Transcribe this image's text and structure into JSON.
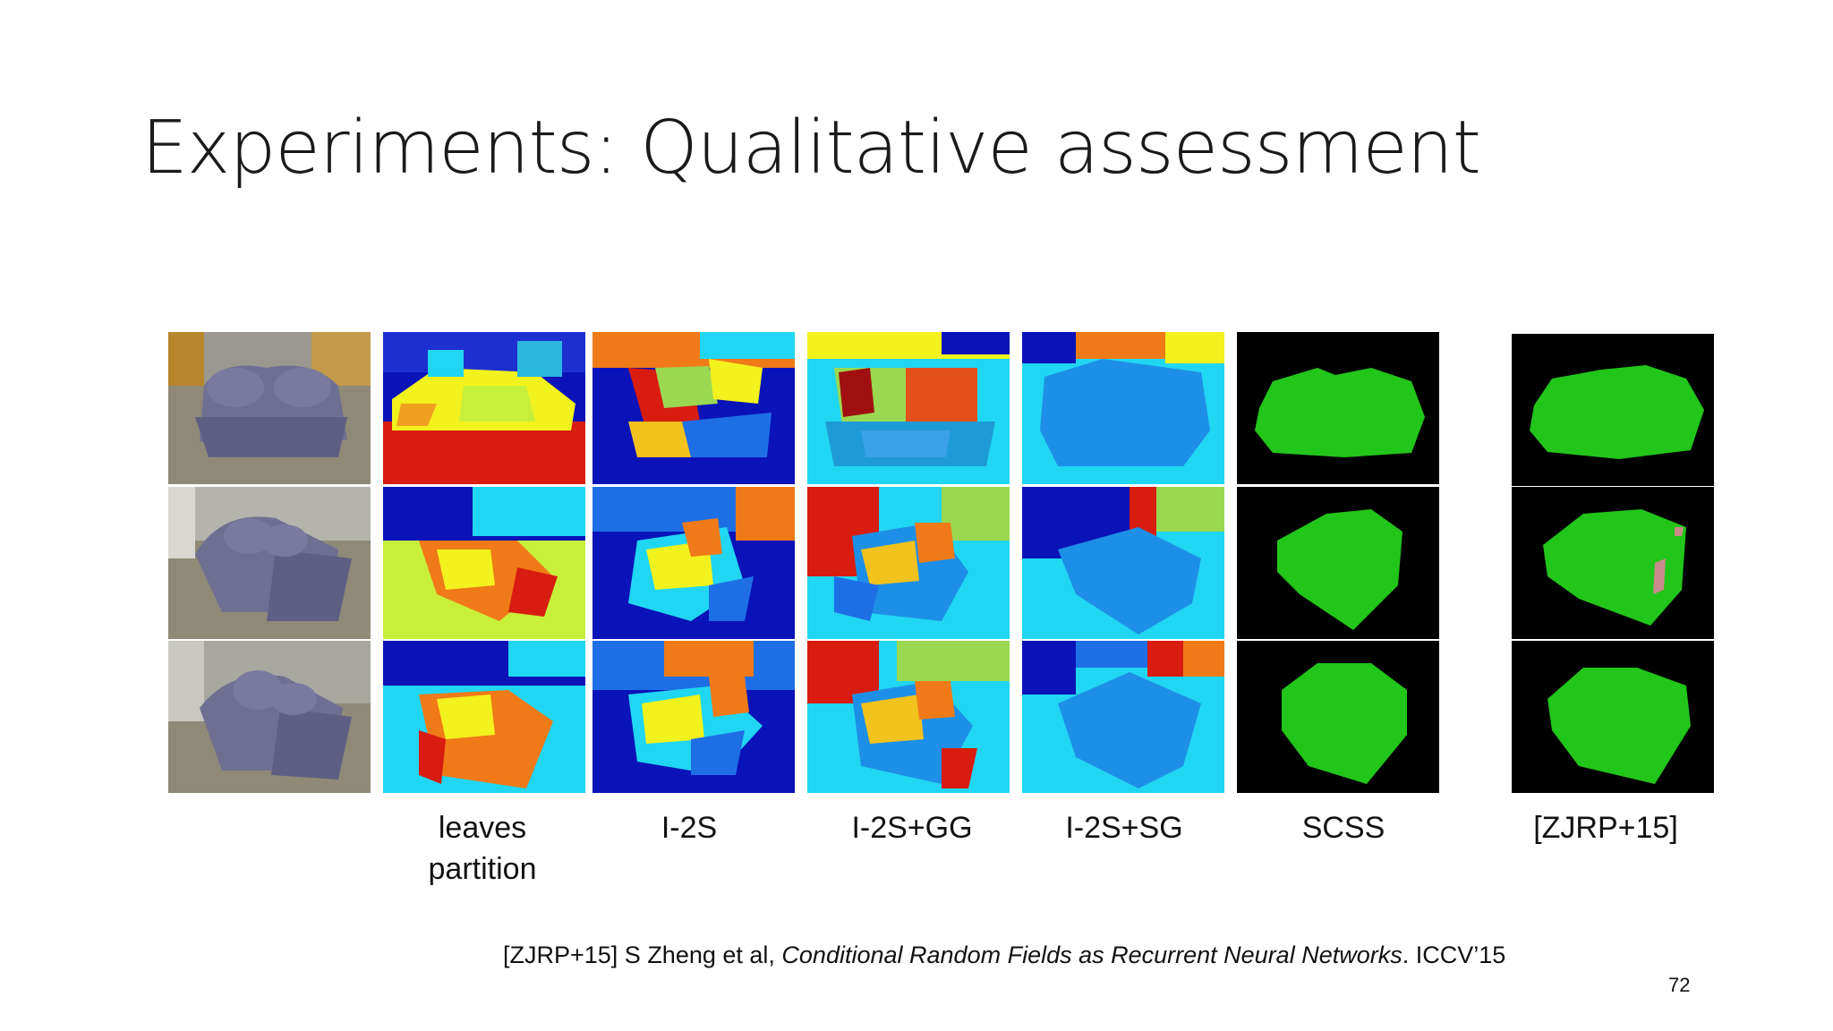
{
  "slide": {
    "title": "Experiments: Qualitative assessment",
    "page_number": "72"
  },
  "columns": [
    {
      "key": "photo",
      "label": ""
    },
    {
      "key": "leaves",
      "label": "leaves partition",
      "label_line1": "leaves",
      "label_line2": "partition"
    },
    {
      "key": "i2s",
      "label": "I-2S"
    },
    {
      "key": "i2sgg",
      "label": "I-2S+GG"
    },
    {
      "key": "i2ssg",
      "label": "I-2S+SG"
    },
    {
      "key": "scss",
      "label": "SCSS"
    },
    {
      "key": "zjrp",
      "label": "[ZJRP+15]"
    }
  ],
  "citation": {
    "prefix": "[ZJRP+15] S Zheng et al, ",
    "title": "Conditional Random Fields as Recurrent Neural Networks",
    "suffix": ". ICCV’15"
  },
  "colors": {
    "background": "#ffffff",
    "mask_bg": "#000000",
    "mask_fg": "#22c51a",
    "mask_error": "#c98a8a",
    "jet_darkblue": "#0a13b8",
    "jet_blue": "#1e6fe6",
    "jet_cyan": "#21d6f2",
    "jet_yellow": "#f2f21e",
    "jet_orange": "#f07a18",
    "jet_red": "#d81c10",
    "sofa": "#6f6f92",
    "carpet": "#8f8a78"
  },
  "rows": [
    {
      "index": 1,
      "view": "front"
    },
    {
      "index": 2,
      "view": "angled-left"
    },
    {
      "index": 3,
      "view": "angled-left-close"
    }
  ]
}
